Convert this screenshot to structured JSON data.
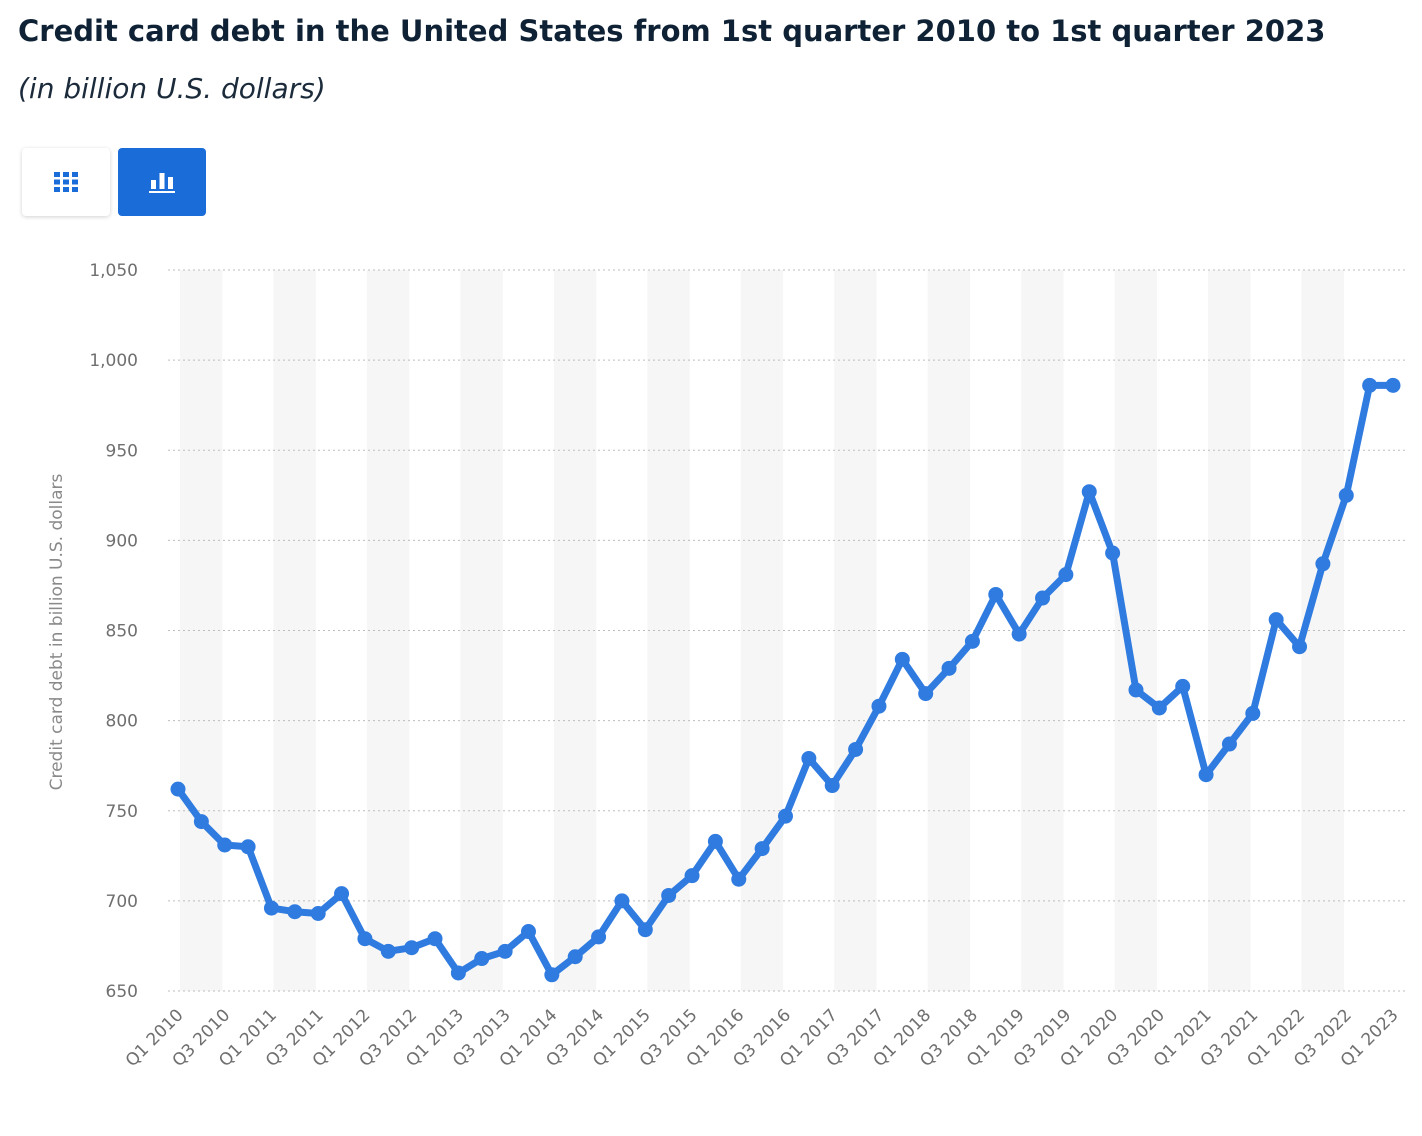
{
  "header": {
    "title": "Credit card debt in the United States from 1st quarter 2010 to 1st quarter 2023",
    "subtitle": "(in billion U.S. dollars)"
  },
  "view_toggle": {
    "table_icon": "grid-icon",
    "chart_icon": "bar-chart-icon",
    "active": "chart",
    "active_color": "#1a6cd8"
  },
  "chart_data": {
    "type": "line",
    "title": "Credit card debt in the United States from 1st quarter 2010 to 1st quarter 2023",
    "subtitle": "(in billion U.S. dollars)",
    "xlabel": "",
    "ylabel": "Credit card debt in billion U.S. dollars",
    "ylim": [
      650,
      1050
    ],
    "yticks": [
      "650",
      "700",
      "750",
      "800",
      "850",
      "900",
      "950",
      "1,000",
      "1,050"
    ],
    "ytick_values": [
      650,
      700,
      750,
      800,
      850,
      900,
      950,
      1000,
      1050
    ],
    "grid": "horizontal dotted",
    "alternating_band": "Q3–Q4 of each year shaded",
    "line_color": "#2f7be0",
    "x_tick_labels": [
      "Q1 2010",
      "Q3 2010",
      "Q1 2011",
      "Q3 2011",
      "Q1 2012",
      "Q3 2012",
      "Q1 2013",
      "Q3 2013",
      "Q1 2014",
      "Q3 2014",
      "Q1 2015",
      "Q3 2015",
      "Q1 2016",
      "Q3 2016",
      "Q1 2017",
      "Q3 2017",
      "Q1 2018",
      "Q3 2018",
      "Q1 2019",
      "Q3 2019",
      "Q1 2020",
      "Q3 2020",
      "Q1 2021",
      "Q3 2021",
      "Q1 2022",
      "Q3 2022",
      "Q1 2023"
    ],
    "x": [
      "Q1 2010",
      "Q2 2010",
      "Q3 2010",
      "Q4 2010",
      "Q1 2011",
      "Q2 2011",
      "Q3 2011",
      "Q4 2011",
      "Q1 2012",
      "Q2 2012",
      "Q3 2012",
      "Q4 2012",
      "Q1 2013",
      "Q2 2013",
      "Q3 2013",
      "Q4 2013",
      "Q1 2014",
      "Q2 2014",
      "Q3 2014",
      "Q4 2014",
      "Q1 2015",
      "Q2 2015",
      "Q3 2015",
      "Q4 2015",
      "Q1 2016",
      "Q2 2016",
      "Q3 2016",
      "Q4 2016",
      "Q1 2017",
      "Q2 2017",
      "Q3 2017",
      "Q4 2017",
      "Q1 2018",
      "Q2 2018",
      "Q3 2018",
      "Q4 2018",
      "Q1 2019",
      "Q2 2019",
      "Q3 2019",
      "Q4 2019",
      "Q1 2020",
      "Q2 2020",
      "Q3 2020",
      "Q4 2020",
      "Q1 2021",
      "Q2 2021",
      "Q3 2021",
      "Q4 2021",
      "Q1 2022",
      "Q2 2022",
      "Q3 2022",
      "Q4 2022",
      "Q1 2023"
    ],
    "series": [
      {
        "values": [
          762,
          744,
          731,
          730,
          696,
          694,
          693,
          704,
          679,
          672,
          674,
          679,
          660,
          668,
          672,
          683,
          659,
          669,
          680,
          700,
          684,
          703,
          714,
          733,
          712,
          729,
          747,
          779,
          764,
          784,
          808,
          834,
          815,
          829,
          844,
          870,
          848,
          868,
          881,
          927,
          893,
          817,
          807,
          819,
          770,
          787,
          804,
          856,
          841,
          887,
          925,
          986,
          986
        ]
      }
    ]
  }
}
